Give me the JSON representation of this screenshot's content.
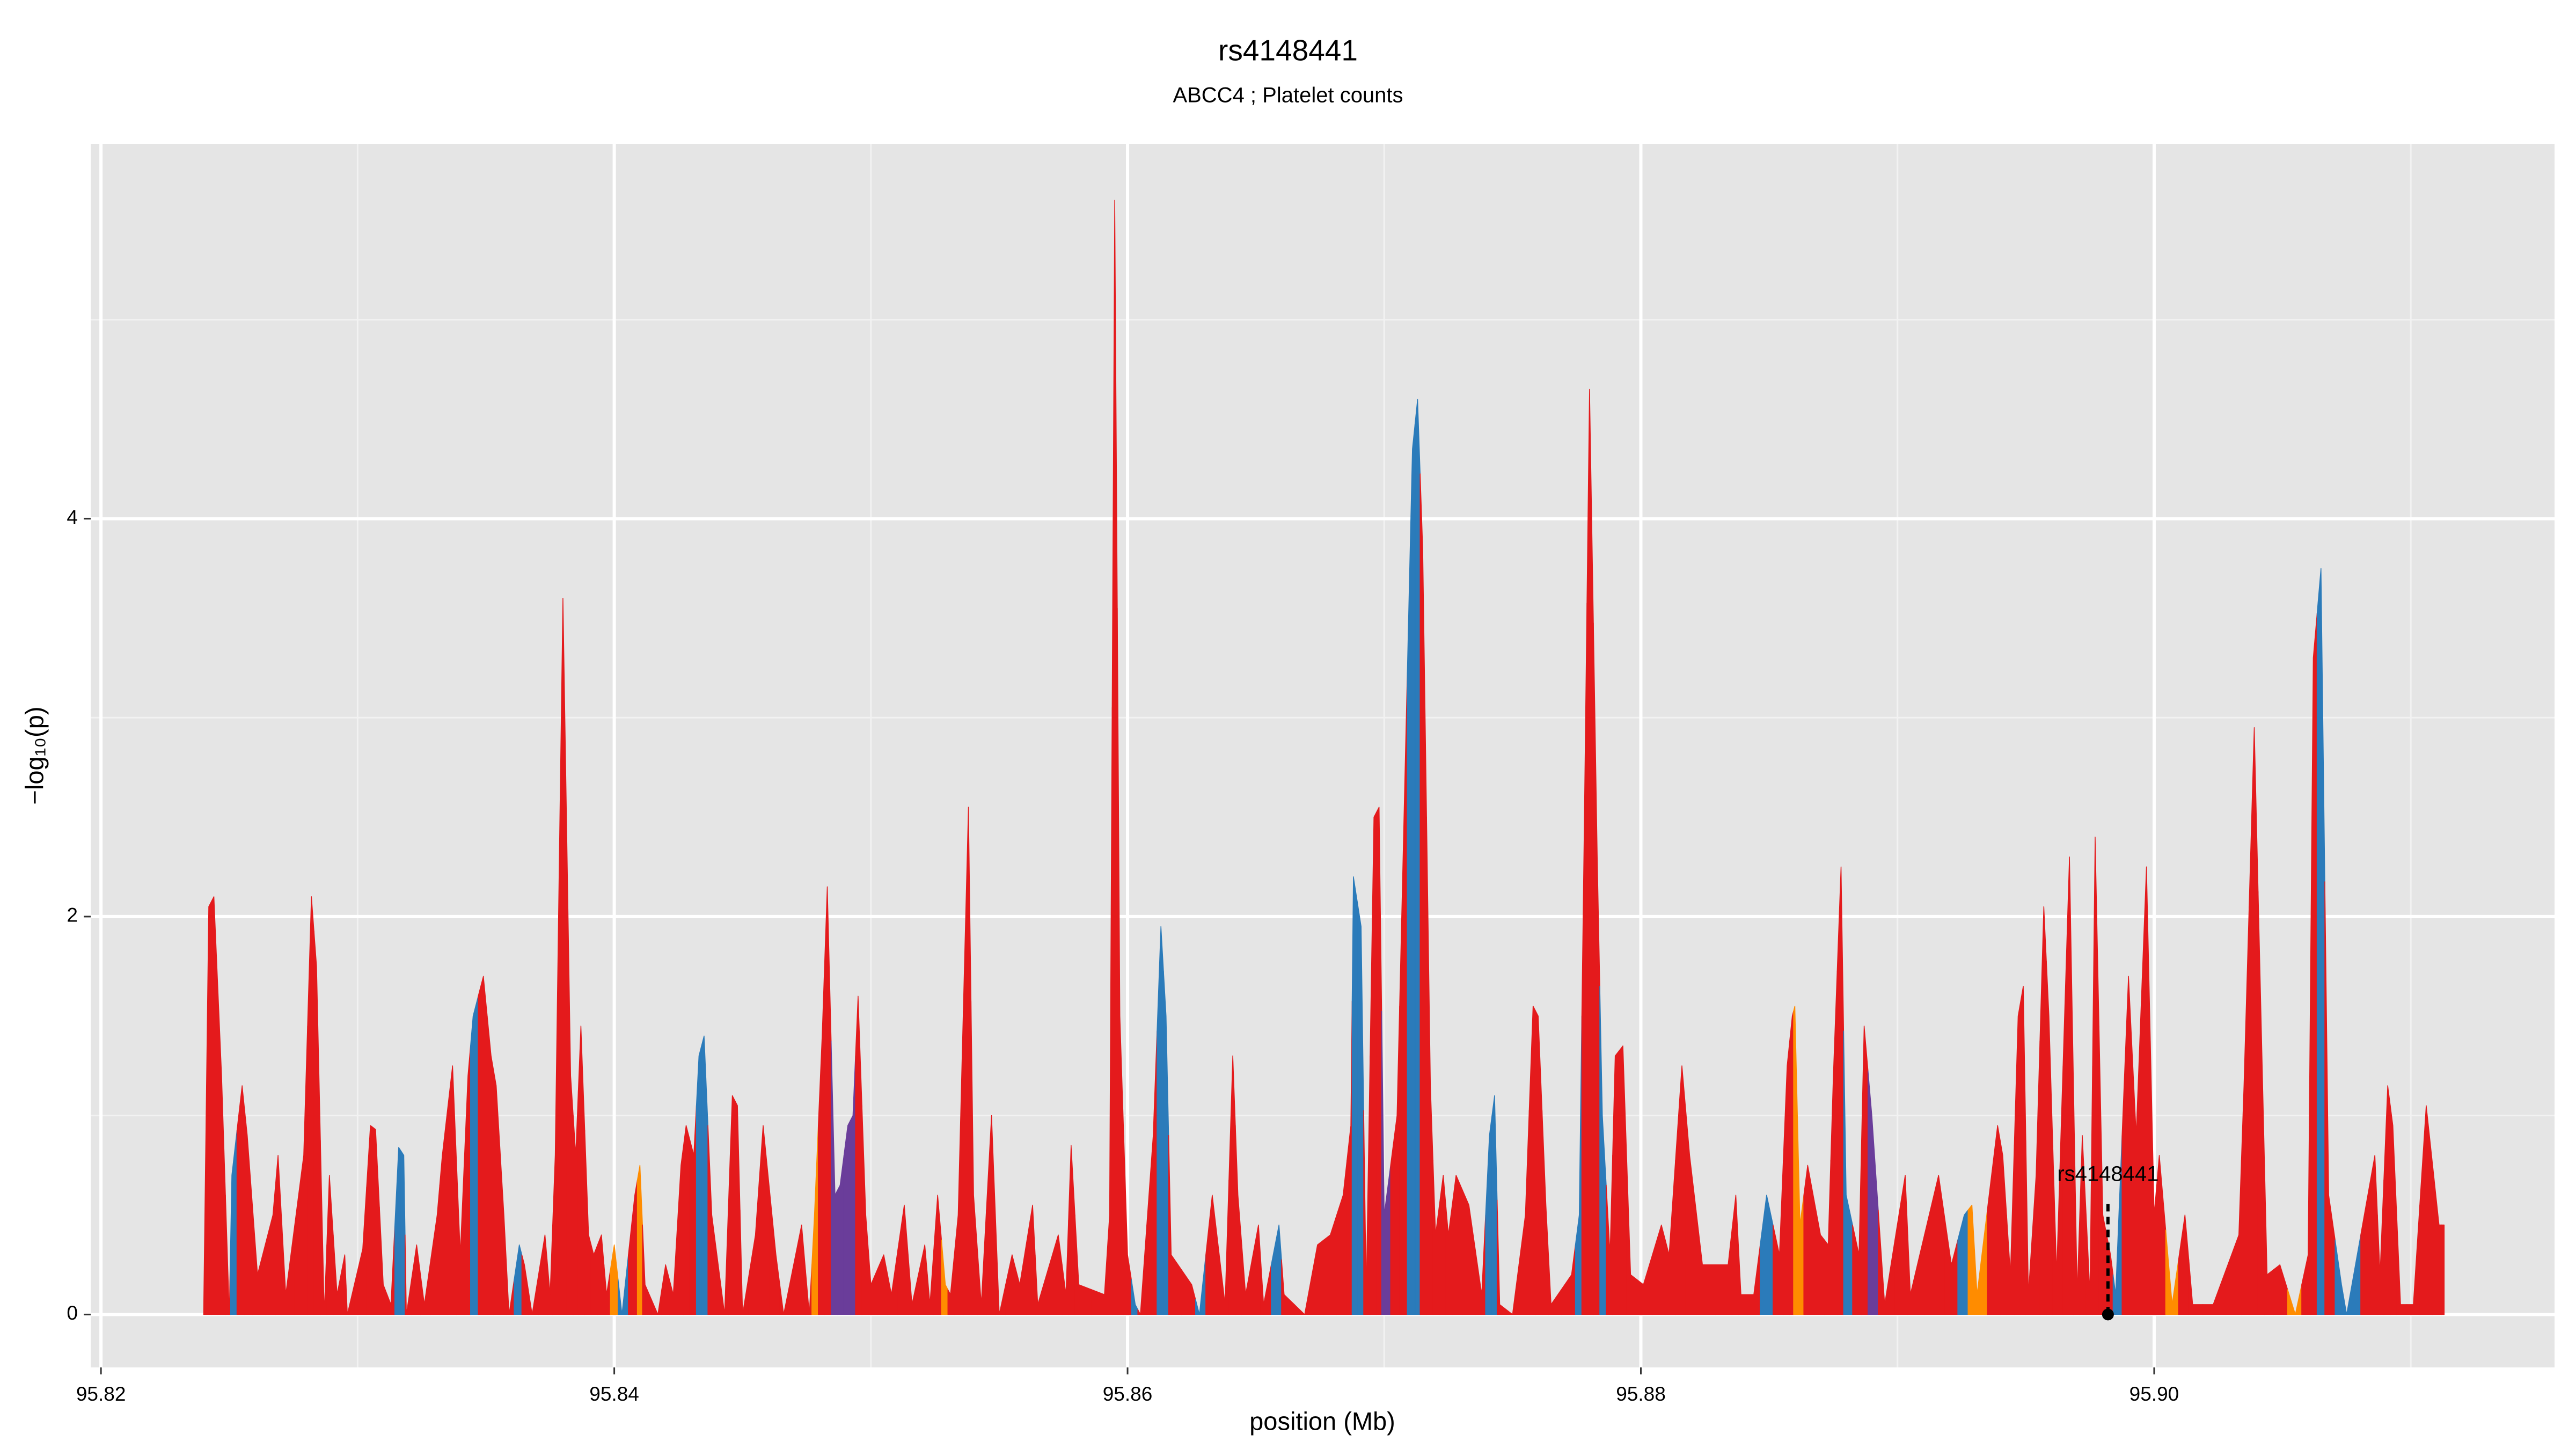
{
  "chart_data": {
    "type": "area",
    "title": "rs4148441",
    "subtitle": "ABCC4 ; Platelet counts",
    "x_label": "position (Mb)",
    "y_label": "−log₁₀(p)",
    "xlim": [
      95.8196,
      95.9156
    ],
    "ylim": [
      -0.266,
      5.884
    ],
    "xticks": [
      95.82,
      95.84,
      95.86,
      95.88,
      {
        "value": 95.9,
        "label": "95.90"
      }
    ],
    "yticks": [
      0,
      2,
      4
    ],
    "x_minor_grid": [
      95.83,
      95.85,
      95.87,
      95.89,
      95.91
    ],
    "y_minor_grid": [
      1,
      3,
      5
    ],
    "grid": true,
    "annotation": {
      "text": "rs4148441",
      "x": 95.8982,
      "y": 0.7
    },
    "x": [
      95.824,
      95.8242,
      95.8244,
      95.8247,
      95.825,
      95.8251,
      95.8255,
      95.8257,
      95.8261,
      95.8267,
      95.8269,
      95.8272,
      95.8279,
      95.8282,
      95.8284,
      95.8287,
      95.8289,
      95.8292,
      95.8295,
      95.8296,
      95.8302,
      95.8305,
      95.8307,
      95.831,
      95.8313,
      95.8316,
      95.8318,
      95.8319,
      95.8323,
      95.8326,
      95.8331,
      95.8333,
      95.8337,
      95.834,
      95.8343,
      95.8345,
      95.8349,
      95.8352,
      95.8354,
      95.8357,
      95.8359,
      95.8363,
      95.8365,
      95.8368,
      95.8373,
      95.8375,
      95.8377,
      95.838,
      95.8383,
      95.8385,
      95.8387,
      95.839,
      95.8392,
      95.8395,
      95.8397,
      95.84,
      95.8403,
      95.8408,
      95.841,
      95.8412,
      95.8417,
      95.842,
      95.8423,
      95.8426,
      95.8428,
      95.8431,
      95.8433,
      95.8435,
      95.8438,
      95.8443,
      95.8446,
      95.8448,
      95.845,
      95.8455,
      95.8458,
      95.8463,
      95.8466,
      95.8473,
      95.8476,
      95.8478,
      95.8481,
      95.8483,
      95.8486,
      95.8488,
      95.8491,
      95.8493,
      95.8495,
      95.8498,
      95.85,
      95.8505,
      95.8508,
      95.8513,
      95.8516,
      95.8521,
      95.8523,
      95.8526,
      95.8529,
      95.8531,
      95.8534,
      95.8538,
      95.854,
      95.8543,
      95.8547,
      95.855,
      95.8555,
      95.8558,
      95.8563,
      95.8565,
      95.8573,
      95.8576,
      95.8578,
      95.8581,
      95.8591,
      95.8593,
      95.8595,
      95.8597,
      95.86,
      95.8603,
      95.8605,
      95.861,
      95.8613,
      95.8615,
      95.8617,
      95.8625,
      95.8628,
      95.8633,
      95.8638,
      95.8641,
      95.8643,
      95.8646,
      95.8651,
      95.8653,
      95.8659,
      95.8661,
      95.8669,
      95.8674,
      95.8679,
      95.8684,
      95.8687,
      95.8688,
      95.8691,
      95.8693,
      95.8696,
      95.8698,
      95.87,
      95.8705,
      95.8707,
      95.8711,
      95.8713,
      95.8715,
      95.8718,
      95.872,
      95.8723,
      95.8725,
      95.8728,
      95.8733,
      95.8738,
      95.8741,
      95.8743,
      95.8745,
      95.875,
      95.8755,
      95.8758,
      95.876,
      95.8763,
      95.8765,
      95.8773,
      95.8776,
      95.8778,
      95.878,
      95.8783,
      95.8785,
      95.8788,
      95.879,
      95.8793,
      95.8796,
      95.8801,
      95.8808,
      95.8811,
      95.8816,
      95.8819,
      95.8824,
      95.8834,
      95.8837,
      95.8839,
      95.8844,
      95.8849,
      95.8854,
      95.8857,
      95.8859,
      95.886,
      95.8862,
      95.8865,
      95.887,
      95.8873,
      95.8875,
      95.8878,
      95.888,
      95.8885,
      95.8887,
      95.889,
      95.8895,
      95.8903,
      95.8905,
      95.8916,
      95.8921,
      95.8926,
      95.8929,
      95.8931,
      95.8939,
      95.8941,
      95.8944,
      95.8947,
      95.8949,
      95.8951,
      95.8954,
      95.8957,
      95.8959,
      95.8962,
      95.8967,
      95.897,
      95.8972,
      95.8975,
      95.8977,
      95.898,
      95.8983,
      95.8985,
      95.899,
      95.8993,
      95.8997,
      95.9,
      95.9002,
      95.9007,
      95.9012,
      95.9015,
      95.9023,
      95.9033,
      95.9035,
      95.9039,
      95.9042,
      95.9044,
      95.9049,
      95.9055,
      95.906,
      95.9062,
      95.9065,
      95.9068,
      95.9073,
      95.9075,
      95.9086,
      95.9088,
      95.9091,
      95.9093,
      95.9096,
      95.9101,
      95.9106,
      95.9111,
      95.9113
    ],
    "values": [
      0,
      2.05,
      2.1,
      1.2,
      0,
      0.7,
      1.15,
      0.9,
      0.2,
      0.5,
      0.8,
      0.1,
      0.8,
      2.1,
      1.75,
      0,
      0.7,
      0.1,
      0.3,
      0,
      0.33,
      0.95,
      0.93,
      0.15,
      0.05,
      0.84,
      0.8,
      0,
      0.35,
      0.05,
      0.5,
      0.8,
      1.25,
      0.3,
      1.2,
      1.5,
      1.7,
      1.3,
      1.15,
      0.5,
      0,
      0.35,
      0.25,
      0,
      0.4,
      0.1,
      0.8,
      3.6,
      1.2,
      0.8,
      1.45,
      0.4,
      0.3,
      0.4,
      0.1,
      0.35,
      0,
      0.6,
      0.75,
      0.15,
      0,
      0.25,
      0.1,
      0.75,
      0.95,
      0.8,
      1.3,
      1.4,
      0.5,
      0,
      1.1,
      1.05,
      0,
      0.4,
      0.95,
      0.3,
      0,
      0.45,
      0,
      0.5,
      1.4,
      2.15,
      0.6,
      0.65,
      0.95,
      1.0,
      1.6,
      0.5,
      0.15,
      0.3,
      0.1,
      0.55,
      0.05,
      0.35,
      0.05,
      0.6,
      0.15,
      0.1,
      0.5,
      2.55,
      0.6,
      0.05,
      1.0,
      0,
      0.3,
      0.15,
      0.55,
      0.05,
      0.4,
      0.1,
      0.85,
      0.15,
      0.1,
      0.5,
      5.6,
      1.5,
      0.3,
      0.05,
      0,
      0.9,
      1.95,
      1.5,
      0.3,
      0.15,
      0,
      0.6,
      0.05,
      1.3,
      0.6,
      0.1,
      0.45,
      0.05,
      0.45,
      0.1,
      0,
      0.35,
      0.4,
      0.6,
      0.95,
      2.2,
      1.95,
      0.1,
      2.5,
      2.55,
      0.5,
      1.0,
      2.1,
      4.35,
      4.6,
      3.85,
      1.15,
      0.4,
      0.7,
      0.4,
      0.7,
      0.55,
      0.1,
      0.9,
      1.1,
      0.05,
      0,
      0.5,
      1.55,
      1.5,
      0.55,
      0.05,
      0.2,
      0.5,
      2.5,
      4.65,
      2.3,
      1.0,
      0.3,
      1.3,
      1.35,
      0.2,
      0.15,
      0.45,
      0.3,
      1.25,
      0.8,
      0.25,
      0.25,
      0.6,
      0.1,
      0.1,
      0.6,
      0.3,
      1.25,
      1.5,
      1.55,
      0.45,
      0.75,
      0.4,
      0.35,
      1.2,
      2.25,
      0.6,
      0.3,
      1.45,
      1.0,
      0.05,
      0.7,
      0.1,
      0.7,
      0.25,
      0.5,
      0.55,
      0.1,
      0.95,
      0.8,
      0.2,
      1.5,
      1.65,
      0.1,
      0.7,
      2.05,
      1.5,
      0.2,
      2.3,
      0.1,
      0.9,
      0.1,
      2.4,
      0.5,
      0.3,
      0.1,
      1.7,
      0.9,
      2.25,
      0.5,
      0.8,
      0.05,
      0.5,
      0.05,
      0.05,
      0.4,
      1.15,
      2.95,
      1.3,
      0.2,
      0.25,
      0,
      0.3,
      3.3,
      3.75,
      0.6,
      0.15,
      0,
      0.8,
      0.2,
      1.15,
      0.95,
      0.05,
      0.05,
      1.05,
      0.45,
      0.45
    ],
    "colors": [
      "#e41a1c",
      "#e41a1c",
      "#e41a1c",
      "#e41a1c",
      "#e41a1c",
      "#2b7bba",
      "#e41a1c",
      "#e41a1c",
      "#e41a1c",
      "#e41a1c",
      "#e41a1c",
      "#e41a1c",
      "#e41a1c",
      "#e41a1c",
      "#e41a1c",
      "#e41a1c",
      "#e41a1c",
      "#e41a1c",
      "#e41a1c",
      "#e41a1c",
      "#e41a1c",
      "#e41a1c",
      "#e41a1c",
      "#e41a1c",
      "#e41a1c",
      "#2b7bba",
      "#2b7bba",
      "#e41a1c",
      "#e41a1c",
      "#e41a1c",
      "#e41a1c",
      "#e41a1c",
      "#e41a1c",
      "#e41a1c",
      "#e41a1c",
      "#2b7bba",
      "#e41a1c",
      "#e41a1c",
      "#e41a1c",
      "#e41a1c",
      "#e41a1c",
      "#2b7bba",
      "#e41a1c",
      "#e41a1c",
      "#e41a1c",
      "#e41a1c",
      "#e41a1c",
      "#e41a1c",
      "#e41a1c",
      "#e41a1c",
      "#e41a1c",
      "#e41a1c",
      "#e41a1c",
      "#e41a1c",
      "#e41a1c",
      "#ff8c00",
      "#2b7bba",
      "#e41a1c",
      "#ff8c00",
      "#e41a1c",
      "#e41a1c",
      "#e41a1c",
      "#e41a1c",
      "#e41a1c",
      "#e41a1c",
      "#e41a1c",
      "#2b7bba",
      "#2b7bba",
      "#e41a1c",
      "#e41a1c",
      "#e41a1c",
      "#e41a1c",
      "#e41a1c",
      "#e41a1c",
      "#e41a1c",
      "#e41a1c",
      "#e41a1c",
      "#e41a1c",
      "#e41a1c",
      "#ff8c00",
      "#e41a1c",
      "#e41a1c",
      "#6a3d9a",
      "#6a3d9a",
      "#6a3d9a",
      "#6a3d9a",
      "#e41a1c",
      "#e41a1c",
      "#e41a1c",
      "#e41a1c",
      "#e41a1c",
      "#e41a1c",
      "#e41a1c",
      "#e41a1c",
      "#e41a1c",
      "#e41a1c",
      "#ff8c00",
      "#e41a1c",
      "#e41a1c",
      "#e41a1c",
      "#e41a1c",
      "#e41a1c",
      "#e41a1c",
      "#e41a1c",
      "#e41a1c",
      "#e41a1c",
      "#e41a1c",
      "#e41a1c",
      "#e41a1c",
      "#e41a1c",
      "#e41a1c",
      "#e41a1c",
      "#e41a1c",
      "#e41a1c",
      "#e41a1c",
      "#e41a1c",
      "#e41a1c",
      "#2b7bba",
      "#e41a1c",
      "#e41a1c",
      "#2b7bba",
      "#2b7bba",
      "#e41a1c",
      "#e41a1c",
      "#2b7bba",
      "#e41a1c",
      "#e41a1c",
      "#e41a1c",
      "#e41a1c",
      "#e41a1c",
      "#e41a1c",
      "#e41a1c",
      "#2b7bba",
      "#e41a1c",
      "#e41a1c",
      "#e41a1c",
      "#e41a1c",
      "#e41a1c",
      "#e41a1c",
      "#2b7bba",
      "#2b7bba",
      "#e41a1c",
      "#e41a1c",
      "#e41a1c",
      "#6a3d9a",
      "#e41a1c",
      "#e41a1c",
      "#2b7bba",
      "#2b7bba",
      "#e41a1c",
      "#e41a1c",
      "#e41a1c",
      "#e41a1c",
      "#e41a1c",
      "#e41a1c",
      "#e41a1c",
      "#e41a1c",
      "#2b7bba",
      "#2b7bba",
      "#e41a1c",
      "#e41a1c",
      "#e41a1c",
      "#e41a1c",
      "#e41a1c",
      "#e41a1c",
      "#e41a1c",
      "#e41a1c",
      "#2b7bba",
      "#e41a1c",
      "#e41a1c",
      "#e41a1c",
      "#2b7bba",
      "#e41a1c",
      "#e41a1c",
      "#e41a1c",
      "#e41a1c",
      "#e41a1c",
      "#e41a1c",
      "#e41a1c",
      "#e41a1c",
      "#e41a1c",
      "#e41a1c",
      "#e41a1c",
      "#e41a1c",
      "#e41a1c",
      "#e41a1c",
      "#2b7bba",
      "#e41a1c",
      "#e41a1c",
      "#e41a1c",
      "#ff8c00",
      "#ff8c00",
      "#e41a1c",
      "#e41a1c",
      "#e41a1c",
      "#e41a1c",
      "#e41a1c",
      "#2b7bba",
      "#e41a1c",
      "#e41a1c",
      "#6a3d9a",
      "#e41a1c",
      "#e41a1c",
      "#e41a1c",
      "#e41a1c",
      "#e41a1c",
      "#2b7bba",
      "#ff8c00",
      "#ff8c00",
      "#e41a1c",
      "#e41a1c",
      "#e41a1c",
      "#e41a1c",
      "#e41a1c",
      "#e41a1c",
      "#e41a1c",
      "#e41a1c",
      "#e41a1c",
      "#e41a1c",
      "#e41a1c",
      "#e41a1c",
      "#e41a1c",
      "#e41a1c",
      "#e41a1c",
      "#e41a1c",
      "#e41a1c",
      "#2b7bba",
      "#e41a1c",
      "#e41a1c",
      "#e41a1c",
      "#e41a1c",
      "#e41a1c",
      "#ff8c00",
      "#e41a1c",
      "#e41a1c",
      "#e41a1c",
      "#e41a1c",
      "#e41a1c",
      "#e41a1c",
      "#e41a1c",
      "#e41a1c",
      "#e41a1c",
      "#ff8c00",
      "#e41a1c",
      "#e41a1c",
      "#2b7bba",
      "#e41a1c",
      "#2b7bba",
      "#2b7bba",
      "#e41a1c",
      "#e41a1c",
      "#e41a1c",
      "#e41a1c",
      "#e41a1c",
      "#e41a1c",
      "#e41a1c",
      "#e41a1c",
      "#e41a1c",
      "#e41a1c"
    ]
  }
}
